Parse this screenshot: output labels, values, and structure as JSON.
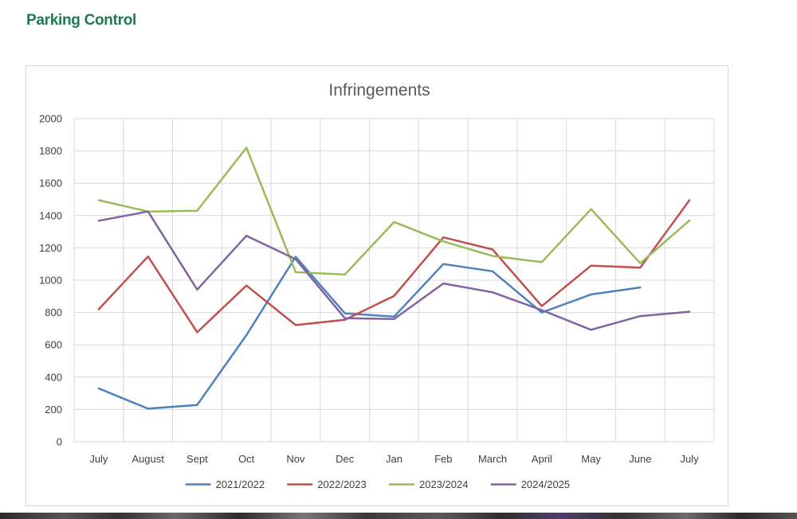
{
  "page": {
    "title": "Parking Control"
  },
  "chart_data": {
    "type": "line",
    "title": "Infringements",
    "xlabel": "",
    "ylabel": "",
    "categories": [
      "July",
      "August",
      "Sept",
      "Oct",
      "Nov",
      "Dec",
      "Jan",
      "Feb",
      "March",
      "April",
      "May",
      "June",
      "July"
    ],
    "ylim": [
      0,
      2000
    ],
    "yticks": [
      0,
      200,
      400,
      600,
      800,
      1000,
      1200,
      1400,
      1600,
      1800,
      2000
    ],
    "grid": true,
    "legend_position": "bottom",
    "series": [
      {
        "name": "2021/2022",
        "color": "#4f81bd",
        "values": [
          330,
          205,
          228,
          660,
          1145,
          795,
          775,
          1100,
          1055,
          800,
          912,
          955,
          null
        ]
      },
      {
        "name": "2022/2023",
        "color": "#c0504d",
        "values": [
          820,
          1147,
          678,
          967,
          722,
          755,
          903,
          1265,
          1190,
          840,
          1090,
          1078,
          1495
        ]
      },
      {
        "name": "2023/2024",
        "color": "#9bbb59",
        "values": [
          1495,
          1425,
          1430,
          1820,
          1050,
          1035,
          1360,
          1240,
          1150,
          1112,
          1440,
          1105,
          1370
        ]
      },
      {
        "name": "2024/2025",
        "color": "#8064a2",
        "values": [
          1368,
          1425,
          942,
          1275,
          1130,
          765,
          760,
          980,
          925,
          815,
          693,
          778,
          805
        ]
      }
    ]
  }
}
